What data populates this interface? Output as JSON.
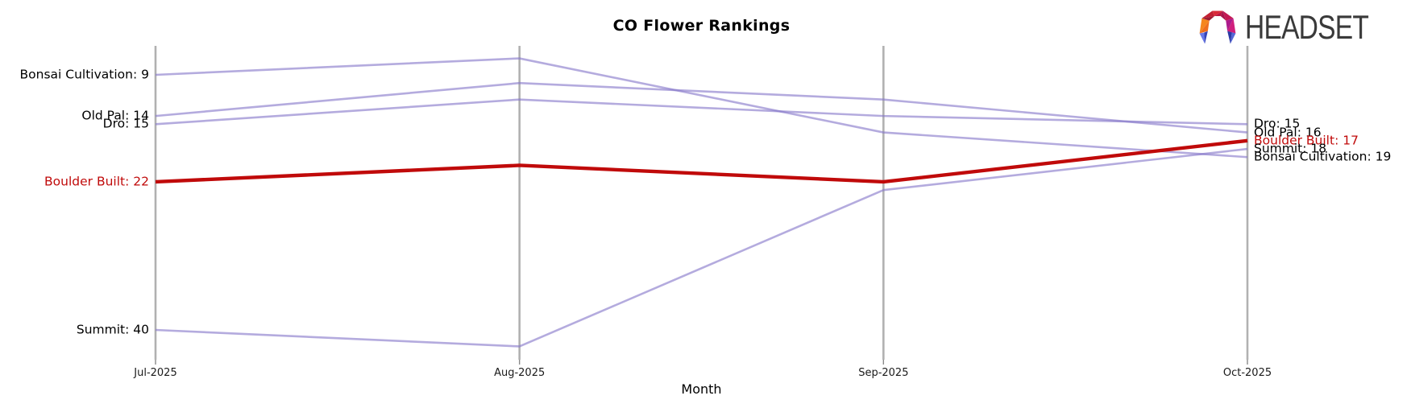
{
  "header": {
    "title": "CO Flower Rankings"
  },
  "logo": {
    "text": "HEADSET",
    "icon": "headset-faceted-arch",
    "text_color": "#3a3a3a"
  },
  "chart_data": {
    "type": "line",
    "subtype": "bump-ranking",
    "title": "CO Flower Rankings",
    "xlabel": "Month",
    "ylabel": "",
    "y_axis_inverted": true,
    "grid": "vertical category axis lines only",
    "legend_position": "none (direct labels at line ends)",
    "categories": [
      "Jul-2025",
      "Aug-2025",
      "Sep-2025",
      "Oct-2025"
    ],
    "series": [
      {
        "name": "Bonsai Cultivation",
        "values": [
          9,
          7,
          16,
          19
        ],
        "color": "#a79edb",
        "highlight": false
      },
      {
        "name": "Old Pal",
        "values": [
          14,
          10,
          12,
          16
        ],
        "color": "#a79edb",
        "highlight": false
      },
      {
        "name": "Dro",
        "values": [
          15,
          12,
          14,
          15
        ],
        "color": "#a79edb",
        "highlight": false
      },
      {
        "name": "Summit",
        "values": [
          40,
          42,
          23,
          18
        ],
        "color": "#a79edb",
        "highlight": false
      },
      {
        "name": "Boulder Built",
        "values": [
          22,
          20,
          22,
          17
        ],
        "color": "#c00a0a",
        "highlight": true
      }
    ],
    "left_labels": [
      {
        "text": "Bonsai Cultivation: 9",
        "rank": 9,
        "color": "#000000"
      },
      {
        "text": "Old Pal: 14",
        "rank": 14,
        "color": "#000000"
      },
      {
        "text": "Dro: 15",
        "rank": 15,
        "color": "#000000"
      },
      {
        "text": "Boulder Built: 22",
        "rank": 22,
        "color": "#c00a0a"
      },
      {
        "text": "Summit: 40",
        "rank": 40,
        "color": "#000000"
      }
    ],
    "right_labels": [
      {
        "text": "Dro: 15",
        "rank": 15,
        "color": "#000000"
      },
      {
        "text": "Old Pal: 16",
        "rank": 16,
        "color": "#000000"
      },
      {
        "text": "Boulder Built: 17",
        "rank": 17,
        "color": "#c00a0a"
      },
      {
        "text": "Summit: 18",
        "rank": 18,
        "color": "#000000"
      },
      {
        "text": "Bonsai Cultivation: 19",
        "rank": 19,
        "color": "#000000"
      }
    ],
    "axis_color": "#b1b1b1",
    "default_line_color": "#a79edb",
    "highlight_line_color": "#c00a0a"
  }
}
